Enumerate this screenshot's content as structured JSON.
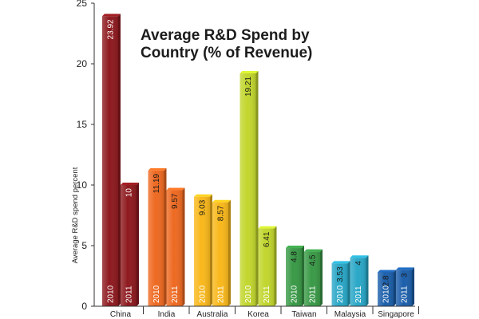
{
  "chart_data": {
    "type": "bar",
    "title_lines": [
      "Average R&D Spend by",
      "Country (% of Revenue)"
    ],
    "xlabel": "",
    "ylabel": "Average R&D spend percent",
    "ylim": [
      0,
      25
    ],
    "yticks": [
      0,
      5,
      10,
      15,
      20,
      25
    ],
    "categories": [
      "China",
      "India",
      "Australia",
      "Korea",
      "Taiwan",
      "Malaysia",
      "Singapore"
    ],
    "colors": [
      "#8e1a1f",
      "#ee6a22",
      "#f9b81b",
      "#c2d62e",
      "#3a9a47",
      "#2aa8c8",
      "#1c5fab"
    ],
    "series": [
      {
        "name": "2010",
        "values": [
          23.92,
          11.19,
          9.03,
          19.21,
          4.8,
          3.53,
          2.8
        ],
        "labels": [
          "23.92",
          "11.19",
          "9.03",
          "19.21",
          "4.8",
          "3.53",
          "2.8"
        ]
      },
      {
        "name": "2011",
        "values": [
          10,
          9.57,
          8.57,
          6.41,
          4.5,
          4,
          3
        ],
        "labels": [
          "10",
          "9.57",
          "8.57",
          "6.41",
          "4.5",
          "4",
          "3"
        ]
      }
    ],
    "grid": false,
    "legend": "none"
  }
}
